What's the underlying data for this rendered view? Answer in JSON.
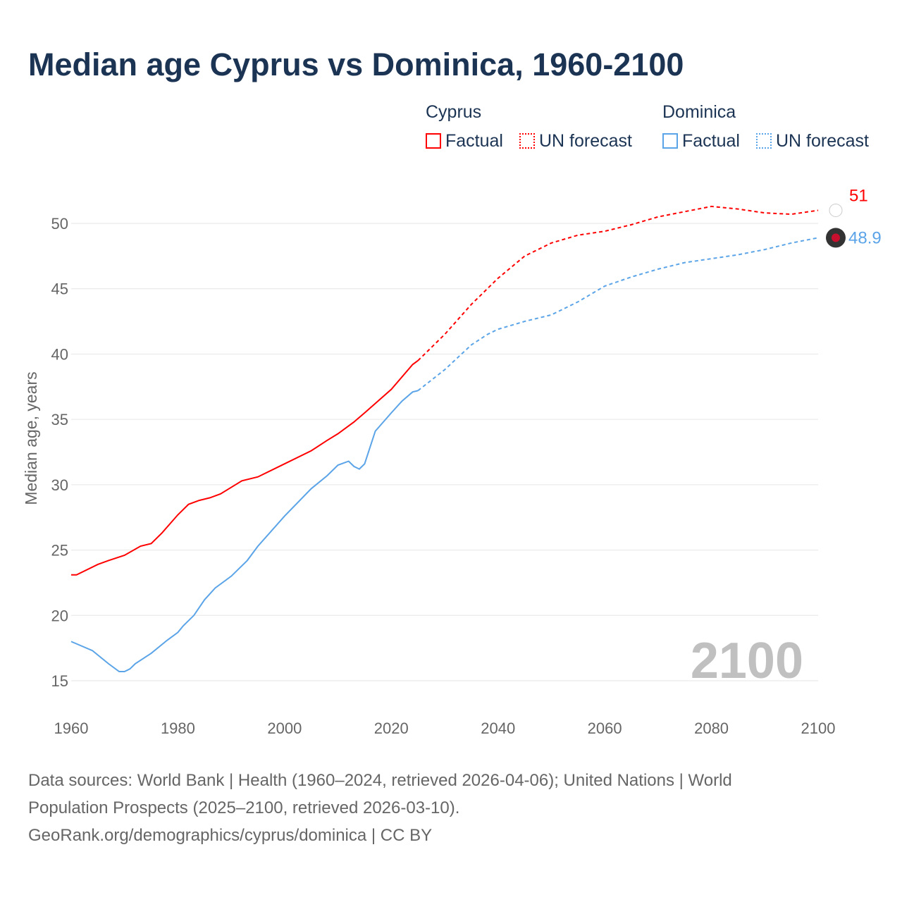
{
  "title": "Median age Cyprus vs Dominica, 1960-2100",
  "legend": {
    "cyprus": "Cyprus",
    "dominica": "Dominica",
    "factual": "Factual",
    "forecast": "UN forecast"
  },
  "source": {
    "line1": "Data sources: World Bank | Health (1960–2024, retrieved 2026-04-06); United Nations | World",
    "line2": "Population Prospects (2025–2100, retrieved 2026-03-10).",
    "line3": "GeoRank.org/demographics/cyprus/dominica | CC BY"
  },
  "chart_data": {
    "type": "line",
    "title": "Median age Cyprus vs Dominica, 1960-2100",
    "ylabel": "Median age, years",
    "xlabel": "",
    "xlim": [
      1960,
      2100
    ],
    "ylim": [
      13,
      52
    ],
    "xticks": [
      1960,
      1980,
      2000,
      2020,
      2040,
      2060,
      2080,
      2100
    ],
    "yticks": [
      15,
      20,
      25,
      30,
      35,
      40,
      45,
      50
    ],
    "year_watermark": "2100",
    "series": [
      {
        "name": "Cyprus",
        "color": "#ff0000",
        "end_label": "51",
        "factual": {
          "x": [
            1960,
            1961,
            1965,
            1967,
            1970,
            1973,
            1975,
            1977,
            1980,
            1982,
            1984,
            1986,
            1988,
            1990,
            1992,
            1995,
            2000,
            2005,
            2008,
            2010,
            2013,
            2015,
            2020,
            2024,
            2025
          ],
          "y": [
            23.1,
            23.1,
            23.9,
            24.2,
            24.6,
            25.3,
            25.5,
            26.3,
            27.7,
            28.5,
            28.8,
            29.0,
            29.3,
            29.8,
            30.3,
            30.6,
            31.6,
            32.6,
            33.4,
            33.9,
            34.8,
            35.5,
            37.3,
            39.2,
            39.5
          ]
        },
        "forecast": {
          "x": [
            2025,
            2030,
            2035,
            2040,
            2045,
            2050,
            2055,
            2060,
            2065,
            2070,
            2075,
            2080,
            2085,
            2090,
            2095,
            2100
          ],
          "y": [
            39.5,
            41.5,
            43.8,
            45.8,
            47.5,
            48.5,
            49.1,
            49.4,
            49.9,
            50.5,
            50.9,
            51.3,
            51.1,
            50.8,
            50.7,
            51.0
          ]
        }
      },
      {
        "name": "Dominica",
        "color": "#5ba4e8",
        "end_label": "48.9",
        "factual": {
          "x": [
            1960,
            1964,
            1967,
            1969,
            1970,
            1971,
            1972,
            1975,
            1978,
            1980,
            1981,
            1983,
            1985,
            1987,
            1990,
            1993,
            1995,
            2000,
            2005,
            2008,
            2010,
            2012,
            2013,
            2014,
            2015,
            2017,
            2020,
            2022,
            2024,
            2025
          ],
          "y": [
            18.0,
            17.3,
            16.3,
            15.7,
            15.7,
            15.9,
            16.3,
            17.1,
            18.1,
            18.7,
            19.2,
            20.0,
            21.2,
            22.1,
            23.0,
            24.2,
            25.3,
            27.6,
            29.7,
            30.7,
            31.5,
            31.8,
            31.4,
            31.2,
            31.6,
            34.1,
            35.5,
            36.4,
            37.1,
            37.2
          ]
        },
        "forecast": {
          "x": [
            2025,
            2030,
            2035,
            2038,
            2040,
            2045,
            2050,
            2055,
            2060,
            2065,
            2070,
            2075,
            2080,
            2085,
            2090,
            2095,
            2100
          ],
          "y": [
            37.2,
            38.8,
            40.7,
            41.5,
            41.9,
            42.5,
            43.0,
            44.0,
            45.2,
            45.9,
            46.5,
            47.0,
            47.3,
            47.6,
            48.0,
            48.5,
            48.9
          ]
        }
      }
    ]
  }
}
